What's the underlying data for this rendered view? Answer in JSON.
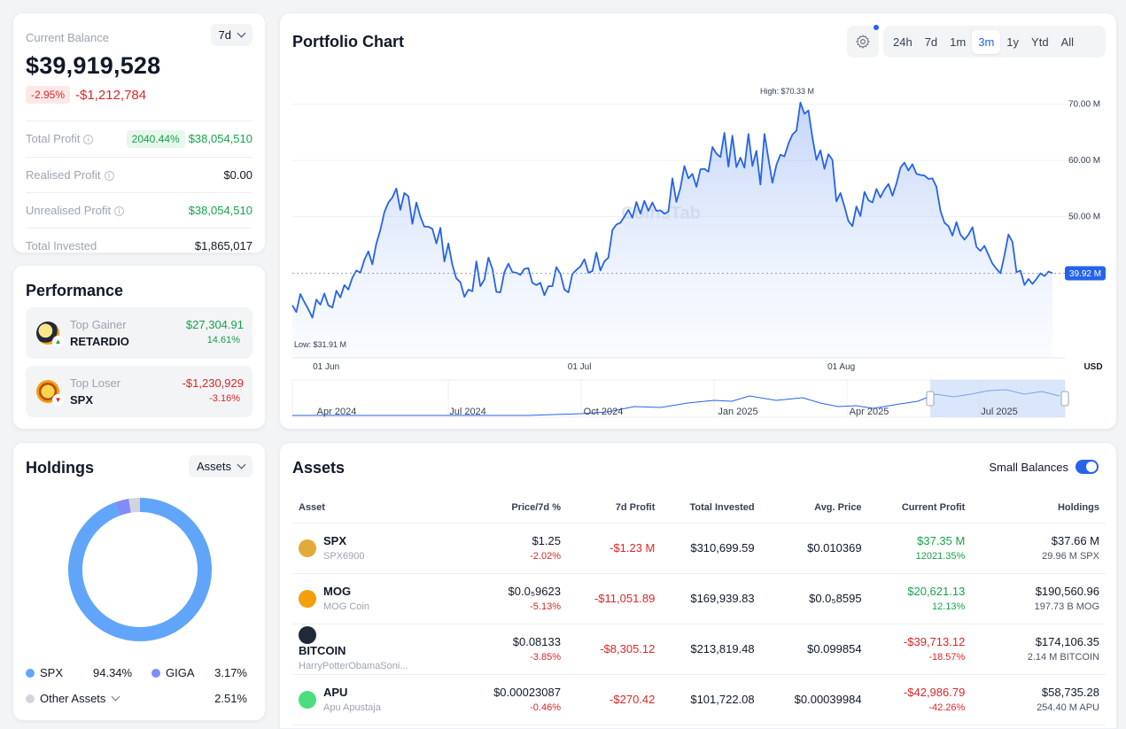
{
  "balance": {
    "label": "Current Balance",
    "range": "7d",
    "value": "$39,919,528",
    "change_pct": "-2.95%",
    "change_abs": "-$1,212,784",
    "rows": [
      {
        "label": "Total Profit",
        "badge": "2040.44%",
        "value": "$38,054,510",
        "info": true
      },
      {
        "label": "Realised Profit",
        "value": "$0.00",
        "info": true
      },
      {
        "label": "Unrealised Profit",
        "value": "$38,054,510",
        "info": true
      },
      {
        "label": "Total Invested",
        "value": "$1,865,017"
      }
    ]
  },
  "performance": {
    "title": "Performance",
    "gainer": {
      "label": "Top Gainer",
      "name": "RETARDIO",
      "value": "$27,304.91",
      "pct": "14.61%"
    },
    "loser": {
      "label": "Top Loser",
      "name": "SPX",
      "value": "-$1,230,929",
      "pct": "-3.16%"
    }
  },
  "holdings": {
    "title": "Holdings",
    "dropdown": "Assets",
    "slices": [
      {
        "name": "SPX",
        "pct": "94.34%",
        "value": 94.34,
        "color": "#60a5fa"
      },
      {
        "name": "GIGA",
        "pct": "3.17%",
        "value": 3.17,
        "color": "#818cf8"
      },
      {
        "name": "Other Assets",
        "pct": "2.51%",
        "value": 2.51,
        "color": "#d1d5db"
      }
    ]
  },
  "chart": {
    "title": "Portfolio Chart",
    "ranges": [
      "24h",
      "7d",
      "1m",
      "3m",
      "1y",
      "Ytd",
      "All"
    ],
    "active_range": "3m",
    "watermark": "CoinsTab",
    "high_label": "High: $70.33 M",
    "low_label": "Low: $31.91 M",
    "current_label": "39.92 M",
    "currency": "USD",
    "navigator_labels": [
      "Apr 2024",
      "Jul 2024",
      "Oct 2024",
      "Jan 2025",
      "Apr 2025",
      "Jul 2025"
    ]
  },
  "chart_data": {
    "type": "area",
    "title": "Portfolio Chart",
    "ylabel": "",
    "xlabel": "",
    "unit": "USD (M)",
    "ylim": [
      25,
      72
    ],
    "y_ticks": [
      "50.00 M",
      "60.00 M",
      "70.00 M"
    ],
    "y_tick_values": [
      50,
      60,
      70
    ],
    "x_ticks": [
      "01 Jun",
      "01 Jul",
      "01 Aug"
    ],
    "x_tick_days": [
      4,
      34,
      65
    ],
    "grid": true,
    "series": [
      {
        "values": [
          34.2,
          33.0,
          36.2,
          34.8,
          33.5,
          32.0,
          35.2,
          34.3,
          36.3,
          34.2,
          33.8,
          36.8,
          35.6,
          37.8,
          37.0,
          39.1,
          40.4,
          40.0,
          42.3,
          43.8,
          41.5,
          45.2,
          47.6,
          50.8,
          52.5,
          53.4,
          55.0,
          51.2,
          54.2,
          53.6,
          48.7,
          52.5,
          50.0,
          48.2,
          48.2,
          47.8,
          45.2,
          48.0,
          42.0,
          45.2,
          41.4,
          39.0,
          38.3,
          35.7,
          37.0,
          36.7,
          42.0,
          37.6,
          38.8,
          42.7,
          40.7,
          36.6,
          36.5,
          40.1,
          41.6,
          40.1,
          40.0,
          39.6,
          40.7,
          40.8,
          38.2,
          37.8,
          38.2,
          36.0,
          37.6,
          37.6,
          41.0,
          39.8,
          37.0,
          36.5,
          39.8,
          40.5,
          41.1,
          42.4,
          40.0,
          40.3,
          43.6,
          40.4,
          42.0,
          42.7,
          47.6,
          48.6,
          48.9,
          50.0,
          51.2,
          49.8,
          52.6,
          50.5,
          52.8,
          51.0,
          52.5,
          51.0,
          51.1,
          50.5,
          50.9,
          56.8,
          52.6,
          55.1,
          59.0,
          56.8,
          57.6,
          55.3,
          58.4,
          58.5,
          58.0,
          62.4,
          61.2,
          60.6,
          64.9,
          58.9,
          64.4,
          58.8,
          60.5,
          58.7,
          64.7,
          59.0,
          61.7,
          55.7,
          64.7,
          60.3,
          56.0,
          59.2,
          61.0,
          60.7,
          63.0,
          64.6,
          65.3,
          70.3,
          68.3,
          68.9,
          64.0,
          60.1,
          61.8,
          58.5,
          61.1,
          60.1,
          52.7,
          54.2,
          51.8,
          49.2,
          48.3,
          51.8,
          50.1,
          54.4,
          52.9,
          52.5,
          54.9,
          53.4,
          54.8,
          55.8,
          53.7,
          55.9,
          58.7,
          59.6,
          58.2,
          59.3,
          57.6,
          57.4,
          57.3,
          56.7,
          56.8,
          55.3,
          51.0,
          48.9,
          48.3,
          46.6,
          49.0,
          46.8,
          45.9,
          46.8,
          48.1,
          44.6,
          43.9,
          44.8,
          43.2,
          41.6,
          40.7,
          39.9,
          43.1,
          46.8,
          45.5,
          40.1,
          40.4,
          37.8,
          38.9,
          38.0,
          38.9,
          39.9,
          39.4,
          40.2,
          39.9
        ]
      }
    ]
  },
  "assets": {
    "title": "Assets",
    "small_balances_label": "Small Balances",
    "columns": [
      "Asset",
      "Price/7d %",
      "7d Profit",
      "Total Invested",
      "Avg. Price",
      "Current Profit",
      "Holdings"
    ],
    "rows": [
      {
        "symbol": "SPX",
        "name": "SPX6900",
        "icon_color": "#e2a93b",
        "price": "$1.25",
        "price_pct": "-2.02%",
        "profit_7d": "-$1.23 M",
        "invested": "$310,699.59",
        "avg_price": "$0.010369",
        "current_profit": "$37.35 M",
        "current_profit_pct": "12021.35%",
        "cp_positive": true,
        "holdings": "$37.66 M",
        "holdings_amount": "29.96 M SPX"
      },
      {
        "symbol": "MOG",
        "name": "MOG Coin",
        "icon_color": "#f59e0b",
        "price": "$0.0₅9623",
        "price_pct": "-5.13%",
        "profit_7d": "-$11,051.89",
        "invested": "$169,939.83",
        "avg_price": "$0.0₅8595",
        "current_profit": "$20,621.13",
        "current_profit_pct": "12.13%",
        "cp_positive": true,
        "holdings": "$190,560.96",
        "holdings_amount": "197.73 B MOG"
      },
      {
        "symbol": "BITCOIN",
        "name": "HarryPotterObamaSoni...",
        "icon_color": "#1f2937",
        "price": "$0.08133",
        "price_pct": "-3.85%",
        "profit_7d": "-$8,305.12",
        "invested": "$213,819.48",
        "avg_price": "$0.099854",
        "current_profit": "-$39,713.12",
        "current_profit_pct": "-18.57%",
        "cp_positive": false,
        "holdings": "$174,106.35",
        "holdings_amount": "2.14 M BITCOIN"
      },
      {
        "symbol": "APU",
        "name": "Apu Apustaja",
        "icon_color": "#4ade80",
        "price": "$0.00023087",
        "price_pct": "-0.46%",
        "profit_7d": "-$270.42",
        "invested": "$101,722.08",
        "avg_price": "$0.00039984",
        "current_profit": "-$42,986.79",
        "current_profit_pct": "-42.26%",
        "cp_positive": false,
        "holdings": "$58,735.28",
        "holdings_amount": "254.40 M APU"
      }
    ]
  }
}
